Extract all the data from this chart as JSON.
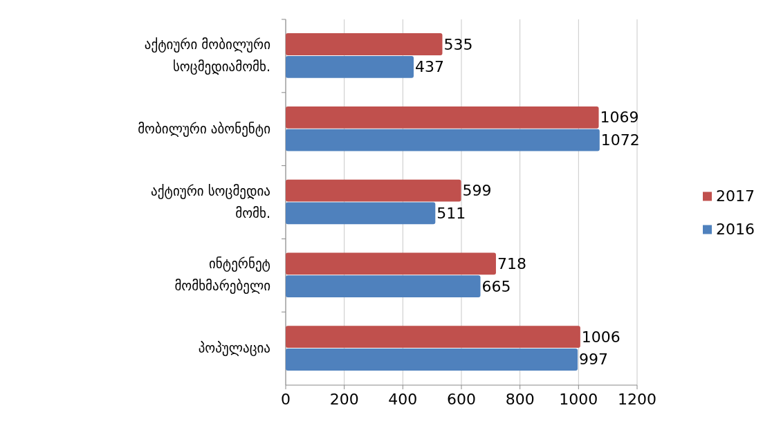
{
  "chart_data": {
    "type": "bar",
    "orientation": "horizontal",
    "categories": [
      "აქტიური მობილური სოცმედიამომხ.",
      "მობილური აბონენტი",
      "აქტიური სოცმედია მომხ.",
      "ინტერნეტ მომხმარებელი",
      "პოპულაცია"
    ],
    "series": [
      {
        "name": "2017",
        "color": "#c0504d",
        "values": [
          535,
          1069,
          599,
          718,
          1006
        ]
      },
      {
        "name": "2016",
        "color": "#4f81bd",
        "values": [
          437,
          1072,
          511,
          665,
          997
        ]
      }
    ],
    "xlim": [
      0,
      1200
    ],
    "xticks": [
      0,
      200,
      400,
      600,
      800,
      1000,
      1200
    ],
    "grid": "x",
    "legend": "right",
    "data_labels": true
  }
}
